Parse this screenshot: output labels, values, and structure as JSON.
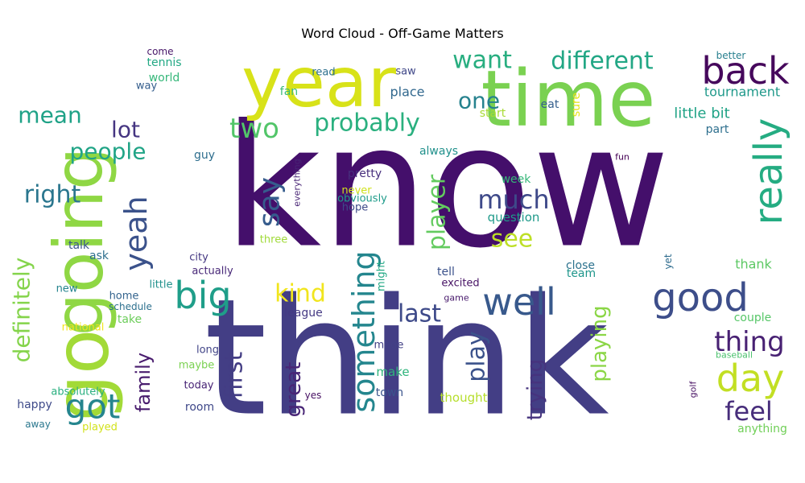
{
  "chart_data": {
    "type": "wordcloud",
    "title": "Word Cloud - Off-Game Matters",
    "colormap": "viridis",
    "words": [
      {
        "text": "know",
        "color": "#440f6b"
      },
      {
        "text": "think",
        "color": "#433e85"
      },
      {
        "text": "time",
        "color": "#7ad151"
      },
      {
        "text": "year",
        "color": "#d8e219"
      },
      {
        "text": "going",
        "color": "#8fd744"
      },
      {
        "text": "go",
        "color": "#a2da37"
      },
      {
        "text": "back",
        "color": "#46085c"
      },
      {
        "text": "different",
        "color": "#22a785"
      },
      {
        "text": "want",
        "color": "#28ae80"
      },
      {
        "text": "two",
        "color": "#52c569"
      },
      {
        "text": "probably",
        "color": "#2ab07f"
      },
      {
        "text": "one",
        "color": "#26828e"
      },
      {
        "text": "mean",
        "color": "#1fa287"
      },
      {
        "text": "lot",
        "color": "#453581"
      },
      {
        "text": "people",
        "color": "#20a486"
      },
      {
        "text": "really",
        "color": "#25ac82"
      },
      {
        "text": "yeah",
        "color": "#3b528b"
      },
      {
        "text": "say",
        "color": "#365c8d"
      },
      {
        "text": "right",
        "color": "#2a768e"
      },
      {
        "text": "much",
        "color": "#3e4989"
      },
      {
        "text": "see",
        "color": "#bddf26"
      },
      {
        "text": "player",
        "color": "#63cb5f"
      },
      {
        "text": "big",
        "color": "#1f9e89"
      },
      {
        "text": "well",
        "color": "#38598c"
      },
      {
        "text": "good",
        "color": "#3d4e8a"
      },
      {
        "text": "kind",
        "color": "#f1e51d"
      },
      {
        "text": "something",
        "color": "#24868e"
      },
      {
        "text": "last",
        "color": "#3e4a89"
      },
      {
        "text": "day",
        "color": "#c2df23"
      },
      {
        "text": "thing",
        "color": "#482173"
      },
      {
        "text": "got",
        "color": "#25858e"
      },
      {
        "text": "definitely",
        "color": "#84d44b"
      },
      {
        "text": "family",
        "color": "#481b6d"
      },
      {
        "text": "first",
        "color": "#433d84"
      },
      {
        "text": "great",
        "color": "#482576"
      },
      {
        "text": "play",
        "color": "#3b528b"
      },
      {
        "text": "playing",
        "color": "#8bd646"
      },
      {
        "text": "trying",
        "color": "#46337e"
      },
      {
        "text": "feel",
        "color": "#472d7b"
      },
      {
        "text": "little bit",
        "color": "#20a386"
      },
      {
        "text": "tournament",
        "color": "#1f998a"
      },
      {
        "text": "part",
        "color": "#2e6f8e"
      },
      {
        "text": "thank",
        "color": "#5cc863"
      },
      {
        "text": "couple",
        "color": "#56c667"
      },
      {
        "text": "better",
        "color": "#277f8e"
      },
      {
        "text": "fun",
        "color": "#440154"
      },
      {
        "text": "close",
        "color": "#2c728e"
      },
      {
        "text": "yet",
        "color": "#2f6c8e"
      },
      {
        "text": "baseball",
        "color": "#4ac16d"
      },
      {
        "text": "golf",
        "color": "#471063"
      },
      {
        "text": "anything",
        "color": "#70cf57"
      },
      {
        "text": "eat",
        "color": "#355f8d"
      },
      {
        "text": "sure",
        "color": "#e5e419"
      },
      {
        "text": "start",
        "color": "#a8db34"
      },
      {
        "text": "place",
        "color": "#31688e"
      },
      {
        "text": "read",
        "color": "#2d708e"
      },
      {
        "text": "saw",
        "color": "#3f4788"
      },
      {
        "text": "fan",
        "color": "#3aba76"
      },
      {
        "text": "always",
        "color": "#21918c"
      },
      {
        "text": "week",
        "color": "#35b779"
      },
      {
        "text": "question",
        "color": "#1f9a8a"
      },
      {
        "text": "pretty",
        "color": "#472f7d"
      },
      {
        "text": "never",
        "color": "#d0e11c"
      },
      {
        "text": "obviously",
        "color": "#1e9b8a"
      },
      {
        "text": "hope",
        "color": "#3e4a89"
      },
      {
        "text": "everything",
        "color": "#482475"
      },
      {
        "text": "three",
        "color": "#a0da39"
      },
      {
        "text": "guy",
        "color": "#2e6e8e"
      },
      {
        "text": "city",
        "color": "#453882"
      },
      {
        "text": "actually",
        "color": "#482878"
      },
      {
        "text": "tell",
        "color": "#3b528b"
      },
      {
        "text": "team",
        "color": "#1f968b"
      },
      {
        "text": "excited",
        "color": "#471365"
      },
      {
        "text": "game",
        "color": "#481a6c"
      },
      {
        "text": "might",
        "color": "#22a884"
      },
      {
        "text": "league",
        "color": "#443983"
      },
      {
        "text": "made",
        "color": "#424086"
      },
      {
        "text": "make",
        "color": "#2fb47c"
      },
      {
        "text": "town",
        "color": "#3a548c"
      },
      {
        "text": "yes",
        "color": "#471063"
      },
      {
        "text": "thought",
        "color": "#b5de2b"
      },
      {
        "text": "long",
        "color": "#414487"
      },
      {
        "text": "maybe",
        "color": "#7ad151"
      },
      {
        "text": "today",
        "color": "#482475"
      },
      {
        "text": "room",
        "color": "#3f4889"
      },
      {
        "text": "home",
        "color": "#33638d"
      },
      {
        "text": "schedule",
        "color": "#2d708e"
      },
      {
        "text": "take",
        "color": "#6ccd5a"
      },
      {
        "text": "little",
        "color": "#21918c"
      },
      {
        "text": "new",
        "color": "#25848e"
      },
      {
        "text": "national",
        "color": "#f1e51d"
      },
      {
        "text": "ask",
        "color": "#2e6f8e"
      },
      {
        "text": "talk",
        "color": "#39568c"
      },
      {
        "text": "happy",
        "color": "#3e4a89"
      },
      {
        "text": "absolutely",
        "color": "#29af7f"
      },
      {
        "text": "away",
        "color": "#2a778e"
      },
      {
        "text": "played",
        "color": "#d2e21b"
      },
      {
        "text": "come",
        "color": "#481769"
      },
      {
        "text": "tennis",
        "color": "#22a884"
      },
      {
        "text": "world",
        "color": "#35b779"
      },
      {
        "text": "way",
        "color": "#355e8d"
      }
    ]
  }
}
